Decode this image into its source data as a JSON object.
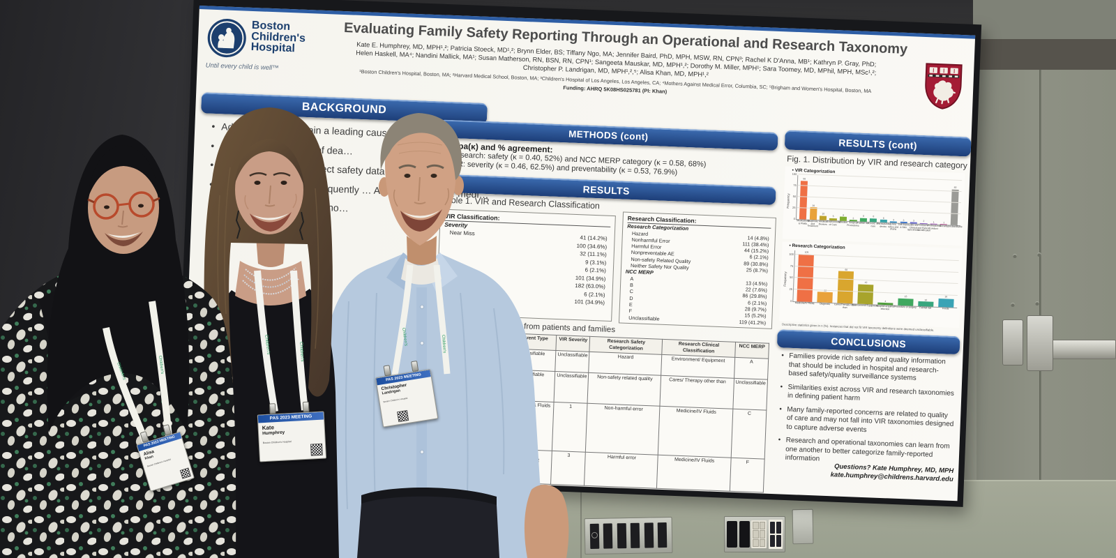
{
  "poster": {
    "org": {
      "line1": "Boston",
      "line2": "Children's",
      "line3": "Hospital",
      "tagline": "Until every child is well™"
    },
    "title": "Evaluating Family Safety Reporting Through an Operational and Research Taxonomy",
    "authors_line1": "Kate E. Humphrey, MD, MPH¹,²; Patricia Stoeck, MD¹,²; Brynn Elder, BS; Tiffany Ngo, MA; Jennifer Baird, PhD, MPH, MSW, RN, CPN³; Rachel K D'Anna, MB¹; Kathryn P. Gray, PhD;",
    "authors_line2": "Helen Haskell, MA⁴; Nandini Mallick, MA¹; Susan Matherson, RN, BSN, RN, CPN¹; Sangeeta Mauskar, MD, MPH¹,²; Dorothy M. Miller, MPH¹; Sara Toomey, MD, MPhil, MPH, MSc¹,²;",
    "authors_line3": "Christopher P. Landrigan, MD, MPH¹,²,⁵; Alisa Khan, MD, MPH¹,²",
    "affiliations": "¹Boston Children's Hospital, Boston, MA; ²Harvard Medical School, Boston, MA; ³Children's Hospital of Los Angeles, Los Angeles, CA; ⁴Mothers Against Medical Error, Columbia, SC; ⁵Brigham and Women's Hospital, Boston, MA",
    "funding": "Funding: AHRQ 5K08HS025781 (PI: Khan)",
    "background": {
      "header": "BACKGROUND",
      "bullets": [
        "Adverse events remain a leading cause … mortality f…",
        "Medical … …g cause of dea…",
        "Hospita… source… …llect safety data …ts and families",
        "Khan … medi… …nts frequently … AEs not docume… medi…",
        "Hos… safe… …ying taxono…"
      ]
    },
    "left_fragment": {
      "line1": "Cha",
      "line2": "F"
    },
    "methods": {
      "header": "METHODS (cont)",
      "kappa_heading": "Kappa(κ) and % agreement:",
      "bullets": [
        "Research: safety (κ = 0.40, 52%) and NCC MERP category (κ = 0.58, 68%)",
        "VIR: severity (κ = 0.46, 62.5%) and preventability (κ = 0.53, 76.9%)"
      ]
    },
    "results": {
      "header": "RESULTS",
      "table1_caption": "Table 1. VIR and Research Classification",
      "vir": {
        "header": "VIR Classification:",
        "sub": "Severity",
        "rows": [
          [
            "Near Miss",
            "41 (14.2%)"
          ],
          [
            "",
            "100 (34.6%)"
          ],
          [
            "",
            "32 (11.1%)"
          ],
          [
            "",
            "9 (3.1%)"
          ],
          [
            "",
            "6 (2.1%)"
          ],
          [
            "",
            "101 (34.9%)"
          ],
          [
            "",
            ""
          ],
          [
            "",
            "182 (63.0%)"
          ],
          [
            "",
            "6 (2.1%)"
          ],
          [
            "",
            "101 (34.9%)"
          ]
        ]
      },
      "research": {
        "header": "Research Classification:",
        "sub1": "Research Categorization",
        "rows1": [
          [
            "Hazard",
            "14 (4.8%)"
          ],
          [
            "Nonharmful Error",
            "111 (38.4%)"
          ],
          [
            "Harmful Error",
            "44 (15.2%)"
          ],
          [
            "Nonpreventable AE",
            "6 (2.1%)"
          ],
          [
            "Non-safety Related Quality",
            "89 (30.8%)"
          ],
          [
            "Neither Safety Nor Quality",
            "25 (8.7%)"
          ]
        ],
        "sub2": "NCC MERP",
        "rows2": [
          [
            "A",
            "13 (4.5%)"
          ],
          [
            "B",
            "22 (7.6%)"
          ],
          [
            "C",
            "86 (29.8%)"
          ],
          [
            "D",
            "6 (2.1%)"
          ],
          [
            "E",
            "28 (9.7%)"
          ],
          [
            "F",
            "15 (5.2%)"
          ],
          [
            "Unclassifiable",
            "119 (41.2%)"
          ]
        ]
      },
      "table2_caption": "…s from patients and families",
      "table2": {
        "columns": [
          "VIR Event Type",
          "VIR Severity",
          "Research Safety Categorization",
          "Research Clinical Classification",
          "NCC MERP"
        ],
        "rows": [
          [
            "Unclassifiable",
            "Unclassifiable",
            "Hazard",
            "Environment/ Equipment",
            "A"
          ],
          [
            "Unclassifiable",
            "Unclassifiable",
            "Non-safety related quality",
            "Cares/ Therapy other than",
            "Unclassifiable"
          ],
          [
            "Medications & Fluids",
            "1",
            "Non-harmful error",
            "Medicine/IV Fluids",
            "C"
          ],
          [
            "Diagnosis/ Assessment",
            "3",
            "Harmful error",
            "Medicine/IV Fluids",
            "F"
          ]
        ]
      }
    },
    "results_cont": {
      "header": "RESULTS (cont)",
      "fig_caption": "Fig. 1. Distribution by VIR and research category",
      "footnote": "Descriptive statistics given in n (%). Instances that did not fit VIR taxonomy definitions were deemed unclassifiable."
    },
    "conclusions": {
      "header": "CONCLUSIONS",
      "bullets": [
        "Families provide rich safety and quality information that should be included in hospital and research-based safety/quality surveillance systems",
        "Similarities exist across VIR and research taxonomies in defining patient harm",
        "Many family-reported concerns are related to quality of care and may not fall into VIR taxonomies designed to capture adverse events",
        "Research and operational taxonomies can learn from one another to better categorize family-reported information"
      ],
      "questions": "Questions? Kate Humphrey, MD, MPH",
      "email": "kate.humphrey@childrens.harvard.edu"
    }
  },
  "chart_data": [
    {
      "type": "bar",
      "title": "VIR Categorization",
      "ylabel": "Frequency",
      "ymax": 100,
      "yticks": [
        0,
        25,
        50,
        75,
        100
      ],
      "categories": [
        "Medications & Fluids",
        "Diagnosis and Treatment",
        "Medical Devices",
        "Environment of Care",
        "Infection",
        "Surgical Procedures",
        "Fall/fall risk",
        "Coord. of care",
        "Intravascular device",
        "Lines, tubes and drains",
        "Soft tissue & Skin",
        "Labs and Clinical Specimens",
        "Consent and Patient Identification",
        "Professional Conduct",
        "Security",
        "Unclassifiable"
      ],
      "values": [
        86,
        28,
        10,
        5,
        9,
        3,
        8,
        8,
        6,
        3,
        3,
        3,
        2,
        1,
        1,
        80
      ],
      "colors": [
        "#ef7045",
        "#e9a23b",
        "#bfa32b",
        "#a8a82c",
        "#7fae31",
        "#59a83c",
        "#3fa85f",
        "#38a67e",
        "#37a3a8",
        "#3b8fc4",
        "#4478cb",
        "#6a6bd0",
        "#8f62c8",
        "#ab5fc0",
        "#c05f9e",
        "#9b9b97"
      ]
    },
    {
      "type": "bar",
      "title": "Research Categorization",
      "ylabel": "Frequency",
      "ymax": 110,
      "yticks": [
        0,
        25,
        50,
        75,
        100
      ],
      "categories": [
        "Medicine/IV Fluids",
        "Diagnosis",
        "Cares/Therapy other than",
        "Environment/ Equipment",
        "Hospital acquired infection",
        "Procedure or surgery",
        "Fall/fall risk",
        "Feeds"
      ],
      "values": [
        105,
        22,
        68,
        42,
        4,
        15,
        10,
        18
      ],
      "colors": [
        "#ef7045",
        "#e9a23b",
        "#d9a62e",
        "#a8a42c",
        "#4f9e3c",
        "#3fa85f",
        "#38a67e",
        "#3aa3b5"
      ]
    }
  ],
  "badges": {
    "title": "PAS 2023 MEETING",
    "left": {
      "first": "Alisa",
      "last": "Khan",
      "org": "Boston Children's Hospital"
    },
    "middle": {
      "first": "Kate",
      "last": "Humphrey",
      "org": "Boston Children's Hospital"
    },
    "right": {
      "first": "Christopher",
      "last": "Landrigan",
      "org": "Boston Children's Hospital"
    }
  },
  "lanyard": {
    "text": "Children's"
  }
}
